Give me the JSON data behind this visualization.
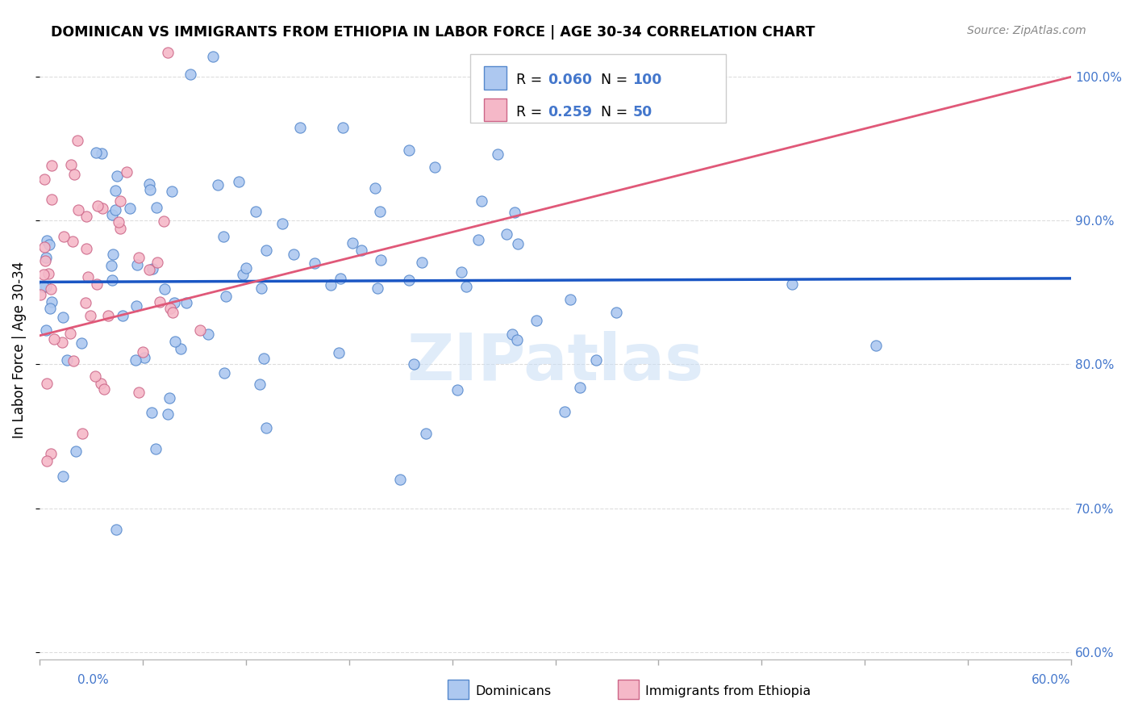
{
  "title": "DOMINICAN VS IMMIGRANTS FROM ETHIOPIA IN LABOR FORCE | AGE 30-34 CORRELATION CHART",
  "source": "Source: ZipAtlas.com",
  "ylabel": "In Labor Force | Age 30-34",
  "yticks": [
    0.6,
    0.7,
    0.8,
    0.9,
    1.0
  ],
  "ytick_labels": [
    "60.0%",
    "70.0%",
    "80.0%",
    "90.0%",
    "100.0%"
  ],
  "xmin": 0.0,
  "xmax": 0.6,
  "ymin": 0.595,
  "ymax": 1.025,
  "legend_blue_r": "0.060",
  "legend_blue_n": "100",
  "legend_pink_r": "0.259",
  "legend_pink_n": "50",
  "blue_fill": "#adc8f0",
  "blue_edge": "#5588cc",
  "pink_fill": "#f5b8c8",
  "pink_edge": "#cc6688",
  "trend_blue_color": "#1a56c4",
  "trend_pink_color": "#e05878",
  "axis_color": "#4477cc",
  "grid_color": "#dddddd",
  "watermark": "ZIPatlas",
  "title_fontsize": 12.5,
  "source_fontsize": 10,
  "tick_fontsize": 11,
  "ylabel_fontsize": 12
}
